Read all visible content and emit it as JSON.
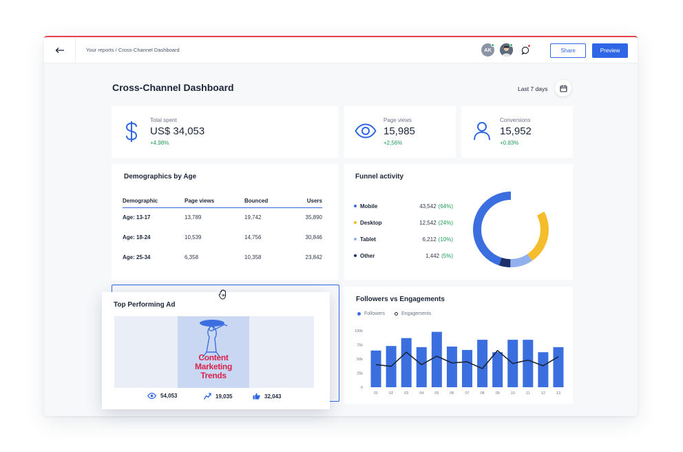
{
  "topbar": {
    "breadcrumb": "Your reports / Cross-Channel Dashboard",
    "avatar_initials": "AK",
    "share_label": "Share",
    "preview_label": "Preview"
  },
  "page": {
    "title": "Cross-Channel Dashboard",
    "date_range": "Last 7 days"
  },
  "kpis": [
    {
      "label": "Total spent",
      "value": "US$ 34,053",
      "change": "+4.98%",
      "icon": "dollar-icon"
    },
    {
      "label": "Page views",
      "value": "15,985",
      "change": "+2,56%",
      "icon": "eye-icon"
    },
    {
      "label": "Conversions",
      "value": "15,952",
      "change": "+0.83%",
      "icon": "user-icon"
    }
  ],
  "demographics": {
    "title": "Demographics by Age",
    "headers": [
      "Demographic",
      "Page views",
      "Bounced",
      "Users"
    ],
    "rows": [
      [
        "Age: 13-17",
        "13,789",
        "19,742",
        "35,890"
      ],
      [
        "Age: 18-24",
        "10,539",
        "14,756",
        "30,846"
      ],
      [
        "Age: 25-34",
        "6,358",
        "10,358",
        "23,842"
      ]
    ]
  },
  "funnel": {
    "title": "Funnel activity",
    "items": [
      {
        "name": "Mobile",
        "value": "43,542",
        "pct": "(64%)",
        "share": 64,
        "color": "#3b6fe0"
      },
      {
        "name": "Desktop",
        "value": "12,542",
        "pct": "(24%)",
        "share": 24,
        "color": "#f5bd2c"
      },
      {
        "name": "Tablet",
        "value": "6,212",
        "pct": "(10%)",
        "share": 10,
        "color": "#93b0ee"
      },
      {
        "name": "Other",
        "value": "1,442",
        "pct": "(5%)",
        "share": 5,
        "color": "#1c2f6b"
      }
    ]
  },
  "top_ad": {
    "title": "Top Performing Ad",
    "poster_lines": [
      "Content",
      "Marketing",
      "Trends"
    ],
    "views": "54,053",
    "shares": "19,035",
    "likes": "32,043"
  },
  "chart_data": {
    "type": "bar",
    "title": "Followers vs Engagements",
    "categories": [
      "01",
      "02",
      "03",
      "04",
      "05",
      "06",
      "07",
      "08",
      "09",
      "10",
      "11",
      "12",
      "13"
    ],
    "series": [
      {
        "name": "Followers",
        "type": "bar",
        "color": "#3b6fe0",
        "values": [
          65,
          73,
          87,
          71,
          98,
          72,
          66,
          84,
          62,
          84,
          84,
          62,
          71
        ]
      },
      {
        "name": "Engagements",
        "type": "line",
        "color": "#1b2538",
        "values": [
          40,
          37,
          62,
          40,
          55,
          43,
          45,
          33,
          65,
          42,
          48,
          38,
          54
        ]
      }
    ],
    "yticks": [
      "100k",
      "75k",
      "50k",
      "25k",
      "0"
    ],
    "ylim": [
      0,
      100
    ],
    "legend": "top-left"
  }
}
